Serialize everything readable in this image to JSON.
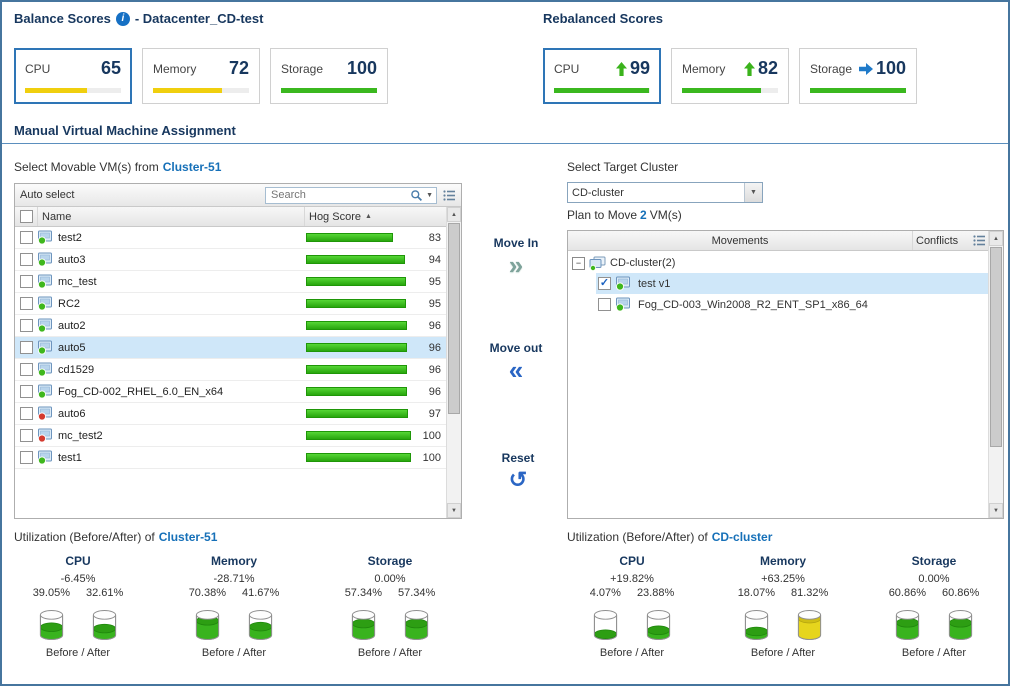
{
  "icons": {
    "info": "i",
    "check": "✓",
    "sort_asc": "▲",
    "caret_down": "▼",
    "move_in": "»",
    "move_out": "«",
    "reset": "↺",
    "scroll_up": "▲",
    "scroll_down": "▼",
    "expander_collapse": "−"
  },
  "colors": {
    "accent_blue": "#2e75b6",
    "link_blue": "#1670b8",
    "score_green": "#3bb81f",
    "score_yellow": "#f0cf0e",
    "arrow_green": "#3bb31c",
    "arrow_blue": "#1f7ac9",
    "row_highlight": "#cfe7f9"
  },
  "balance": {
    "title": "Balance Scores",
    "subtitle": "- Datacenter_CD-test",
    "cards": [
      {
        "label": "CPU",
        "value": "65",
        "bar_pct": 65,
        "bar_color": "#f0cf0e",
        "selected": true
      },
      {
        "label": "Memory",
        "value": "72",
        "bar_pct": 72,
        "bar_color": "#f0cf0e",
        "selected": false
      },
      {
        "label": "Storage",
        "value": "100",
        "bar_pct": 100,
        "bar_color": "#3bb81f",
        "selected": false
      }
    ]
  },
  "rebalanced": {
    "title": "Rebalanced Scores",
    "cards": [
      {
        "label": "CPU",
        "value": "99",
        "arrow": "up",
        "arrow_color": "#3bb31c",
        "bar_pct": 99,
        "bar_color": "#3bb81f",
        "selected": true
      },
      {
        "label": "Memory",
        "value": "82",
        "arrow": "up",
        "arrow_color": "#3bb31c",
        "bar_pct": 82,
        "bar_color": "#3bb81f",
        "selected": false
      },
      {
        "label": "Storage",
        "value": "100",
        "arrow": "right",
        "arrow_color": "#1f7ac9",
        "bar_pct": 100,
        "bar_color": "#3bb81f",
        "selected": false
      }
    ]
  },
  "assignment": {
    "title": "Manual Virtual Machine Assignment",
    "source": {
      "label_prefix": "Select Movable VM(s) from",
      "cluster": "Cluster-51",
      "auto_select": "Auto select",
      "search_placeholder": "Search",
      "col_name": "Name",
      "col_hog": "Hog Score",
      "sort_order": "asc",
      "rows": [
        {
          "name": "test2",
          "score": 83,
          "status": "green",
          "checked": false,
          "selected": false
        },
        {
          "name": "auto3",
          "score": 94,
          "status": "green",
          "checked": false,
          "selected": false
        },
        {
          "name": "mc_test",
          "score": 95,
          "status": "green",
          "checked": false,
          "selected": false
        },
        {
          "name": "RC2",
          "score": 95,
          "status": "green",
          "checked": false,
          "selected": false
        },
        {
          "name": "auto2",
          "score": 96,
          "status": "green",
          "checked": false,
          "selected": false
        },
        {
          "name": "auto5",
          "score": 96,
          "status": "green",
          "checked": false,
          "selected": true
        },
        {
          "name": "cd1529",
          "score": 96,
          "status": "green",
          "checked": false,
          "selected": false
        },
        {
          "name": "Fog_CD-002_RHEL_6.0_EN_x64",
          "score": 96,
          "status": "green",
          "checked": false,
          "selected": false
        },
        {
          "name": "auto6",
          "score": 97,
          "status": "red",
          "checked": false,
          "selected": false
        },
        {
          "name": "mc_test2",
          "score": 100,
          "status": "red",
          "checked": false,
          "selected": false
        },
        {
          "name": "test1",
          "score": 100,
          "status": "green",
          "checked": false,
          "selected": false
        }
      ]
    },
    "actions": [
      {
        "label": "Move In"
      },
      {
        "label": "Move out"
      },
      {
        "label": "Reset"
      }
    ],
    "target": {
      "label": "Select Target Cluster",
      "dropdown_value": "CD-cluster",
      "plan_prefix": "Plan to Move",
      "plan_count": "2",
      "plan_suffix": "VM(s)",
      "col_movements": "Movements",
      "col_conflicts": "Conflicts",
      "group_name": "CD-cluster",
      "group_count": "(2)",
      "rows": [
        {
          "name": "test v1",
          "checked": true,
          "selected": true
        },
        {
          "name": "Fog_CD-003_Win2008_R2_ENT_SP1_x86_64",
          "checked": false,
          "selected": false
        }
      ]
    }
  },
  "utilization": {
    "left": {
      "title_prefix": "Utilization (Before/After) of",
      "cluster": "Cluster-51",
      "caption": "Before / After",
      "metrics": [
        {
          "name": "CPU",
          "delta": "-6.45%",
          "before": "39.05%",
          "after": "32.61%",
          "before_pct": 39.05,
          "after_pct": 32.61,
          "before_color": "green",
          "after_color": "green"
        },
        {
          "name": "Memory",
          "delta": "-28.71%",
          "before": "70.38%",
          "after": "41.67%",
          "before_pct": 70.38,
          "after_pct": 41.67,
          "before_color": "green",
          "after_color": "green"
        },
        {
          "name": "Storage",
          "delta": "0.00%",
          "before": "57.34%",
          "after": "57.34%",
          "before_pct": 57.34,
          "after_pct": 57.34,
          "before_color": "green",
          "after_color": "green"
        }
      ]
    },
    "right": {
      "title_prefix": "Utilization (Before/After) of",
      "cluster": "CD-cluster",
      "caption": "Before / After",
      "metrics": [
        {
          "name": "CPU",
          "delta": "+19.82%",
          "before": "4.07%",
          "after": "23.88%",
          "before_pct": 4.07,
          "after_pct": 23.88,
          "before_color": "green",
          "after_color": "green"
        },
        {
          "name": "Memory",
          "delta": "+63.25%",
          "before": "18.07%",
          "after": "81.32%",
          "before_pct": 18.07,
          "after_pct": 81.32,
          "before_color": "green",
          "after_color": "yellow"
        },
        {
          "name": "Storage",
          "delta": "0.00%",
          "before": "60.86%",
          "after": "60.86%",
          "before_pct": 60.86,
          "after_pct": 60.86,
          "before_color": "green",
          "after_color": "green"
        }
      ]
    }
  }
}
